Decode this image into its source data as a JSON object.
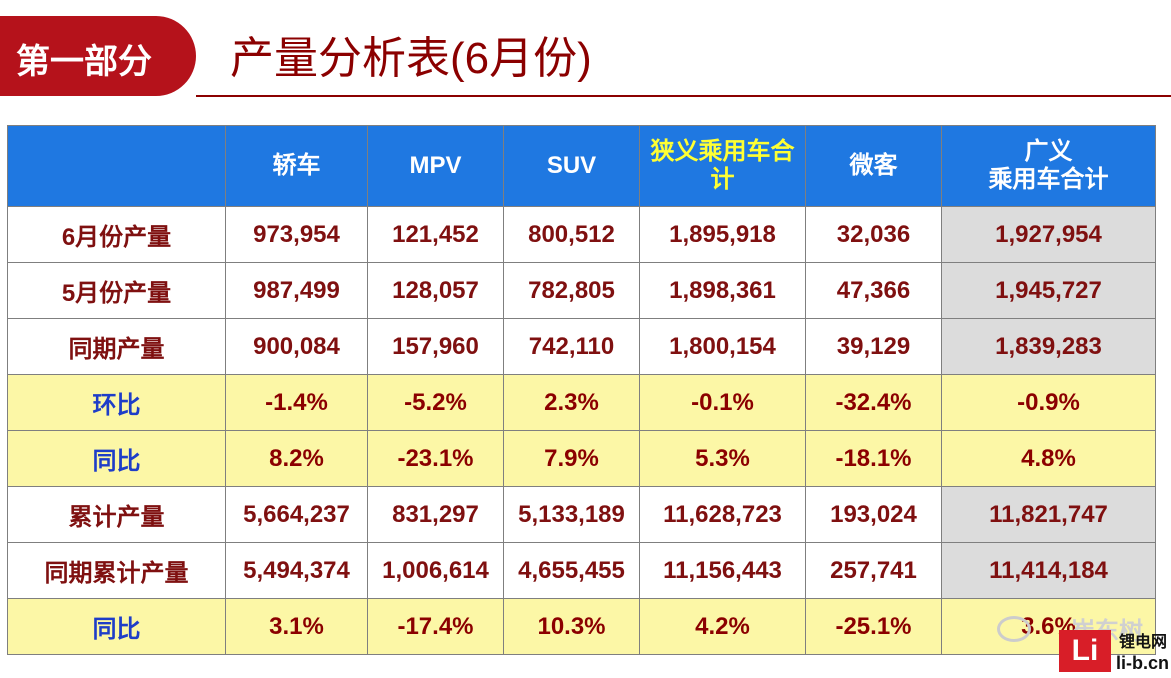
{
  "header": {
    "badge": "第一部分",
    "title": "产量分析表(6月份)"
  },
  "table": {
    "columns": [
      "",
      "轿车",
      "MPV",
      "SUV",
      "狭义乘用车合计",
      "微客",
      "广义\n乘用车合计"
    ],
    "rows": [
      {
        "label": "6月份产量",
        "values": [
          "973,954",
          "121,452",
          "800,512",
          "1,895,918",
          "32,036",
          "1,927,954"
        ]
      },
      {
        "label": "5月份产量",
        "values": [
          "987,499",
          "128,057",
          "782,805",
          "1,898,361",
          "47,366",
          "1,945,727"
        ]
      },
      {
        "label": "同期产量",
        "values": [
          "900,084",
          "157,960",
          "742,110",
          "1,800,154",
          "39,129",
          "1,839,283"
        ]
      },
      {
        "label": "环比",
        "values": [
          "-1.4%",
          "-5.2%",
          "2.3%",
          "-0.1%",
          "-32.4%",
          "-0.9%"
        ]
      },
      {
        "label": "同比",
        "values": [
          "8.2%",
          "-23.1%",
          "7.9%",
          "5.3%",
          "-18.1%",
          "4.8%"
        ]
      },
      {
        "label": "累计产量",
        "values": [
          "5,664,237",
          "831,297",
          "5,133,189",
          "11,628,723",
          "193,024",
          "11,821,747"
        ]
      },
      {
        "label": "同期累计产量",
        "values": [
          "5,494,374",
          "1,006,614",
          "4,655,455",
          "11,156,443",
          "257,741",
          "11,414,184"
        ]
      },
      {
        "label": "同比",
        "values": [
          "3.1%",
          "-17.4%",
          "10.3%",
          "4.2%",
          "-25.1%",
          "3.6%"
        ]
      }
    ]
  },
  "watermark": {
    "text": "崔东树",
    "logo": "Li",
    "logo_cn": "锂电网",
    "logo_url": "li-b.cn"
  }
}
